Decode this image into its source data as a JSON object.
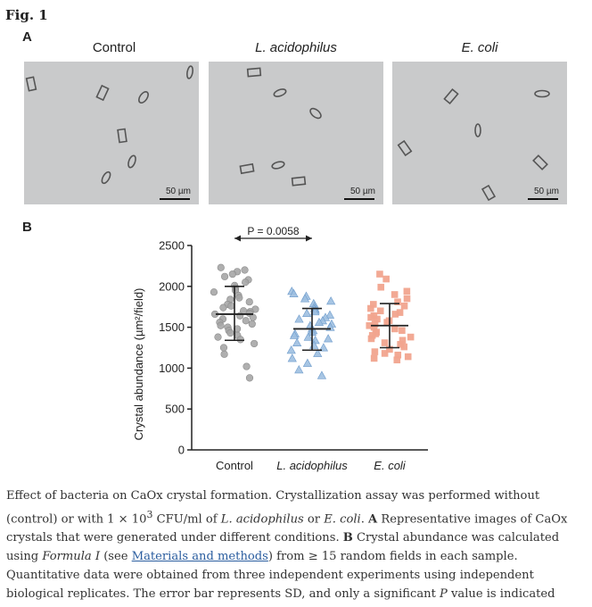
{
  "figure": {
    "label": "Fig. 1"
  },
  "panel_a": {
    "label": "A",
    "images": [
      {
        "title": "Control",
        "scale": "50 µm",
        "italic": false
      },
      {
        "title": "L. acidophilus",
        "scale": "50 µm",
        "italic": true
      },
      {
        "title": "E. coli",
        "scale": "50 µm",
        "italic": true
      }
    ]
  },
  "panel_b": {
    "label": "B"
  },
  "chart_data": {
    "type": "scatter",
    "ylabel": "Crystal abundance (µm²/field)",
    "ylim": [
      0,
      2500
    ],
    "yticks": [
      0,
      500,
      1000,
      1500,
      2000,
      2500
    ],
    "categories": [
      "Control",
      "L. acidophilus",
      "E. coli"
    ],
    "significance": {
      "text": "P = 0.0058",
      "between": [
        "Control",
        "L. acidophilus"
      ]
    },
    "series": [
      {
        "color": "#a6a6a6",
        "marker": "circle",
        "mean": 1660,
        "sd_low": 1340,
        "sd_high": 2000,
        "values": [
          2230,
          2200,
          2180,
          2150,
          2120,
          2080,
          2050,
          2010,
          1980,
          1950,
          1930,
          1890,
          1860,
          1840,
          1810,
          1780,
          1760,
          1740,
          1720,
          1700,
          1690,
          1670,
          1660,
          1640,
          1620,
          1600,
          1580,
          1560,
          1540,
          1520,
          1500,
          1480,
          1460,
          1430,
          1400,
          1380,
          1350,
          1300,
          1250,
          1170,
          1020,
          880
        ]
      },
      {
        "color": "#9dbfe0",
        "marker": "triangle",
        "mean": 1480,
        "sd_low": 1220,
        "sd_high": 1730,
        "values": [
          1940,
          1910,
          1880,
          1850,
          1820,
          1790,
          1760,
          1730,
          1710,
          1690,
          1670,
          1650,
          1620,
          1600,
          1580,
          1560,
          1540,
          1520,
          1500,
          1480,
          1460,
          1440,
          1420,
          1400,
          1380,
          1360,
          1340,
          1310,
          1280,
          1250,
          1220,
          1180,
          1120,
          1060,
          980,
          910
        ]
      },
      {
        "color": "#f1a48e",
        "marker": "square",
        "mean": 1520,
        "sd_low": 1250,
        "sd_high": 1790,
        "values": [
          2150,
          2090,
          1990,
          1940,
          1900,
          1850,
          1810,
          1780,
          1760,
          1730,
          1700,
          1680,
          1660,
          1640,
          1620,
          1600,
          1580,
          1560,
          1540,
          1520,
          1500,
          1480,
          1460,
          1440,
          1420,
          1400,
          1380,
          1360,
          1340,
          1310,
          1290,
          1260,
          1230,
          1200,
          1180,
          1160,
          1140,
          1120,
          1100
        ]
      }
    ]
  },
  "caption": {
    "s1": "Effect of bacteria on CaOx crystal formation. Crystallization assay was performed without (control) or with 1 × 10",
    "s1_sup": "3",
    "s2": " CFU/ml of ",
    "s3_i": "L. acidophilus",
    "s4": " or ",
    "s5_i": "E. coli",
    "s6": ". ",
    "s7_b": "A",
    "s8": " Representative images of CaOx crystals that were generated under different conditions. ",
    "s9_b": "B",
    "s10": " Crystal abundance was calculated using ",
    "s11_i": "Formula I",
    "s12": " (see ",
    "s13_link": "Materials and methods",
    "s14": ") from ≥ 15 random fields in each sample. Quantitative data were obtained from three independent experiments using independent biological replicates. The error bar represents SD, and only a significant ",
    "s15_i": "P",
    "s16": " value is indicated"
  }
}
